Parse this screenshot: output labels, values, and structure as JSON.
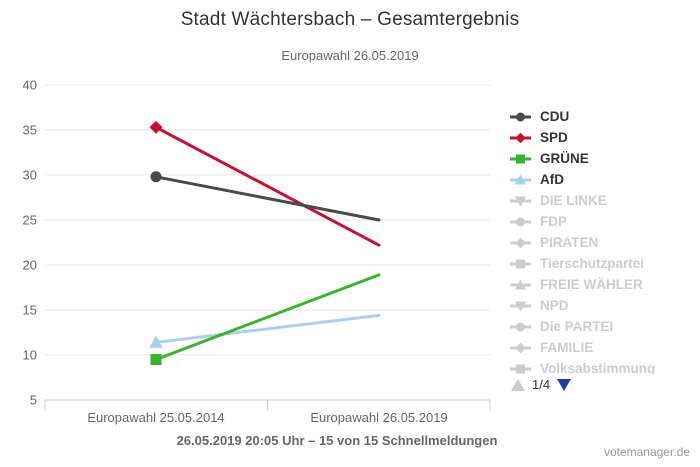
{
  "header": {
    "title": "Stadt Wächtersbach – Gesamtergebnis",
    "subtitle": "Europawahl 26.05.2019"
  },
  "footer": {
    "caption": "26.05.2019 20:05 Uhr – 15 von 15 Schnellmeldungen",
    "watermark": "votemanager.de"
  },
  "legend": {
    "pagination": {
      "current": "1/4",
      "up_icon": "triangle-up-gray",
      "down_icon": "triangle-down-blue",
      "active_arrow_color": "#1e3ea6",
      "inactive_arrow_color": "#cccccc"
    },
    "items": [
      {
        "label": "CDU",
        "color": "#4a4a49",
        "marker": "circle",
        "active": true
      },
      {
        "label": "SPD",
        "color": "#c8102e",
        "marker": "diamond",
        "active": true
      },
      {
        "label": "GRÜNE",
        "color": "#35b52a",
        "marker": "square",
        "active": true
      },
      {
        "label": "AfD",
        "color": "#a9d2e6",
        "marker": "triangle-up",
        "active": true
      },
      {
        "label": "DIE LINKE",
        "color": "#cccccc",
        "marker": "triangle-down",
        "active": false
      },
      {
        "label": "FDP",
        "color": "#cccccc",
        "marker": "circle",
        "active": false
      },
      {
        "label": "PIRATEN",
        "color": "#cccccc",
        "marker": "diamond",
        "active": false
      },
      {
        "label": "Tierschutzpartei",
        "color": "#cccccc",
        "marker": "square",
        "active": false
      },
      {
        "label": "FREIE WÄHLER",
        "color": "#cccccc",
        "marker": "triangle-up",
        "active": false
      },
      {
        "label": "NPD",
        "color": "#cccccc",
        "marker": "triangle-down",
        "active": false
      },
      {
        "label": "Die PARTEI",
        "color": "#cccccc",
        "marker": "circle",
        "active": false
      },
      {
        "label": "FAMILIE",
        "color": "#cccccc",
        "marker": "diamond",
        "active": false
      },
      {
        "label": "Volksabstimmung",
        "color": "#cccccc",
        "marker": "square",
        "active": false
      }
    ]
  },
  "chart_data": {
    "type": "line",
    "categories": [
      "Europawahl 25.05.2014",
      "Europawahl 26.05.2019"
    ],
    "series": [
      {
        "name": "CDU",
        "color": "#4a4a49",
        "marker": "circle",
        "values": [
          29.8,
          25.0
        ]
      },
      {
        "name": "SPD",
        "color": "#c8102e",
        "marker": "diamond",
        "values": [
          35.3,
          22.2
        ]
      },
      {
        "name": "GRÜNE",
        "color": "#35b52a",
        "marker": "square",
        "values": [
          9.5,
          18.9
        ]
      },
      {
        "name": "AfD",
        "color": "#a9d2e6",
        "marker": "triangle-up",
        "values": [
          11.4,
          14.4
        ]
      }
    ],
    "ylim": [
      5,
      40
    ],
    "yticks": [
      5,
      10,
      15,
      20,
      25,
      30,
      35,
      40
    ],
    "grid": true,
    "grid_color": "#e6e6e6",
    "axis_color": "#cccccc",
    "axis_label_color": "#666666",
    "legend_position": "right",
    "title": "Stadt Wächtersbach – Gesamtergebnis",
    "subtitle": "Europawahl 26.05.2019",
    "xlabel": "",
    "ylabel": ""
  }
}
